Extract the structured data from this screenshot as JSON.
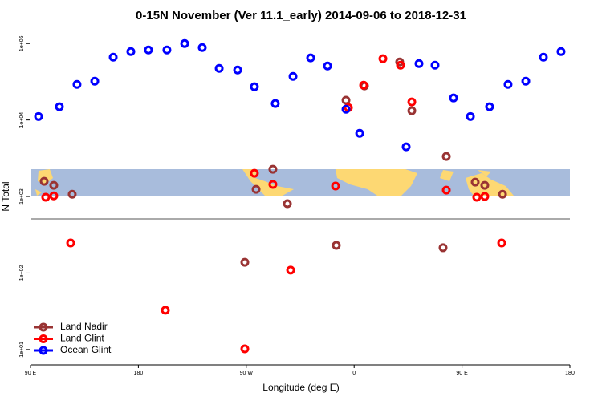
{
  "chart_data": {
    "type": "scatter",
    "title": "0-15N November (Ver 11.1_early)   2014-09-06 to 2018-12-31",
    "x_label": "Longitude (deg E)",
    "y_label": "N Total",
    "log_y": true,
    "legend": "bottom-left",
    "xlim": [
      90,
      540
    ],
    "ylim": [
      6.3,
      141000
    ],
    "xticks": [
      {
        "value": 90,
        "label": "90 E"
      },
      {
        "value": 180,
        "label": "180"
      },
      {
        "value": 270,
        "label": "90 W"
      },
      {
        "value": 360,
        "label": "0"
      },
      {
        "value": 450,
        "label": "90 E"
      },
      {
        "value": 540,
        "label": "180"
      }
    ],
    "yticks": [
      {
        "value": 10,
        "label": "1e+01"
      },
      {
        "value": 100,
        "label": "1e+02"
      },
      {
        "value": 1000,
        "label": "1e+03"
      },
      {
        "value": 10000,
        "label": "1e+04"
      },
      {
        "value": 100000,
        "label": "1e+05"
      }
    ],
    "series": [
      {
        "name": "Land Nadir",
        "color": "#993333",
        "x": [
          101.4,
          109.4,
          124.8,
          268.8,
          278.2,
          292.2,
          304.3,
          345.1,
          353.2,
          368.6,
          398.0,
          408.1,
          434.2,
          436.9,
          461.0,
          469.0,
          483.8
        ],
        "values": [
          1580,
          1400,
          1070,
          138,
          1240,
          2270,
          805,
          230,
          18100,
          27900,
          57400,
          13200,
          214,
          3340,
          1540,
          1400,
          1070
        ]
      },
      {
        "name": "Land Glint",
        "color": "#ff0000",
        "x": [
          102.7,
          109.4,
          123.5,
          202.5,
          268.8,
          276.8,
          292.2,
          307.0,
          344.5,
          355.2,
          367.9,
          384.0,
          398.7,
          408.1,
          436.9,
          462.3,
          469.0,
          483.1
        ],
        "values": [
          977,
          1020,
          247,
          32.6,
          10.2,
          2010,
          1440,
          109,
          1370,
          14500,
          28500,
          63300,
          52100,
          17200,
          1210,
          977,
          1000,
          247
        ]
      },
      {
        "name": "Ocean Glint",
        "color": "#0000ff",
        "x": [
          96.7,
          114.1,
          128.8,
          143.6,
          159.0,
          173.7,
          188.4,
          203.8,
          218.6,
          233.3,
          247.4,
          262.8,
          276.8,
          294.2,
          309.0,
          323.7,
          337.8,
          353.2,
          364.6,
          403.4,
          414.1,
          427.5,
          442.9,
          457.0,
          473.0,
          488.4,
          503.2,
          517.9,
          532.6
        ],
        "values": [
          11100,
          14900,
          29200,
          32200,
          66400,
          78500,
          82400,
          82400,
          100000,
          88700,
          47300,
          45100,
          27200,
          16400,
          37200,
          64900,
          50900,
          13800,
          6700,
          4460,
          54700,
          52100,
          19400,
          11100,
          14900,
          29200,
          32200,
          66400,
          78500
        ]
      }
    ]
  }
}
